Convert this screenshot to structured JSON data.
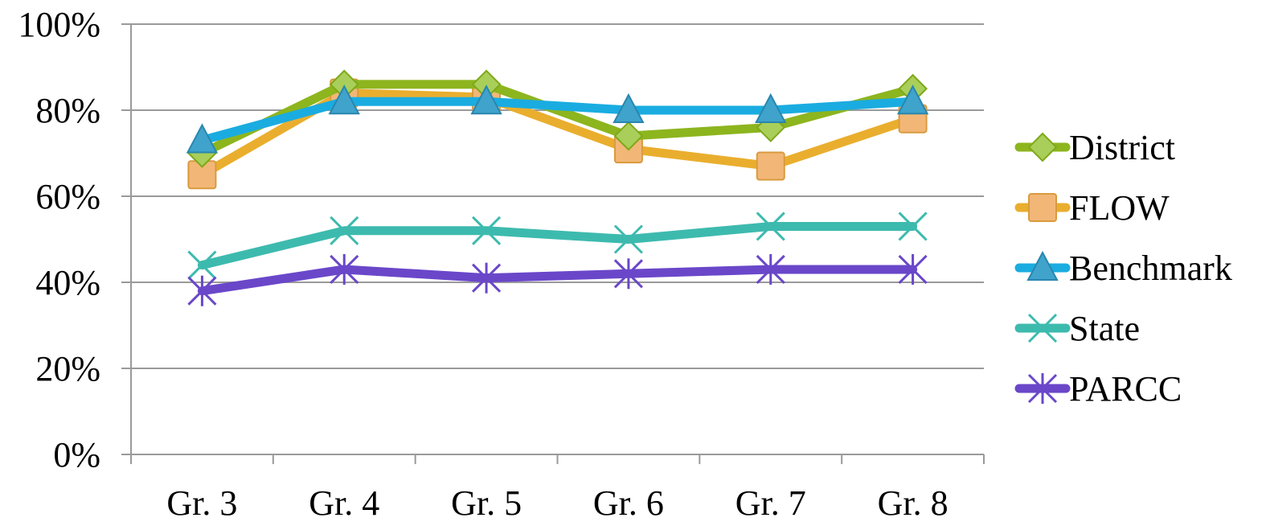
{
  "chart_data": {
    "type": "line",
    "categories": [
      "Gr. 3",
      "Gr. 4",
      "Gr. 5",
      "Gr. 6",
      "Gr. 7",
      "Gr. 8"
    ],
    "ylim": [
      0,
      100
    ],
    "y_ticks": [
      "0%",
      "20%",
      "40%",
      "60%",
      "80%",
      "100%"
    ],
    "y_tick_values": [
      0,
      20,
      40,
      60,
      80,
      100
    ],
    "grid": true,
    "legend_position": "right",
    "series": [
      {
        "name": "District",
        "values": [
          70,
          86,
          86,
          74,
          76,
          85
        ],
        "color": "#8DB51E",
        "marker": "diamond",
        "marker_fill": "#A9CF5A",
        "marker_stroke": "#7FA81A"
      },
      {
        "name": "FLOW",
        "values": [
          65,
          84,
          83,
          71,
          67,
          78
        ],
        "color": "#EAAE2E",
        "marker": "square",
        "marker_fill": "#F2B777",
        "marker_stroke": "#D99A3E"
      },
      {
        "name": "Benchmark",
        "values": [
          73,
          82,
          82,
          80,
          80,
          82
        ],
        "color": "#1AACE0",
        "marker": "triangle",
        "marker_fill": "#3FA3CC",
        "marker_stroke": "#2A86AE"
      },
      {
        "name": "State",
        "values": [
          44,
          52,
          52,
          50,
          53,
          53
        ],
        "color": "#3DBAAE",
        "marker": "x",
        "marker_fill": "none",
        "marker_stroke": "#3DBAAE"
      },
      {
        "name": "PARCC",
        "values": [
          38,
          43,
          41,
          42,
          43,
          43
        ],
        "color": "#6A47C9",
        "marker": "asterisk",
        "marker_fill": "none",
        "marker_stroke": "#6A47C9"
      }
    ]
  }
}
